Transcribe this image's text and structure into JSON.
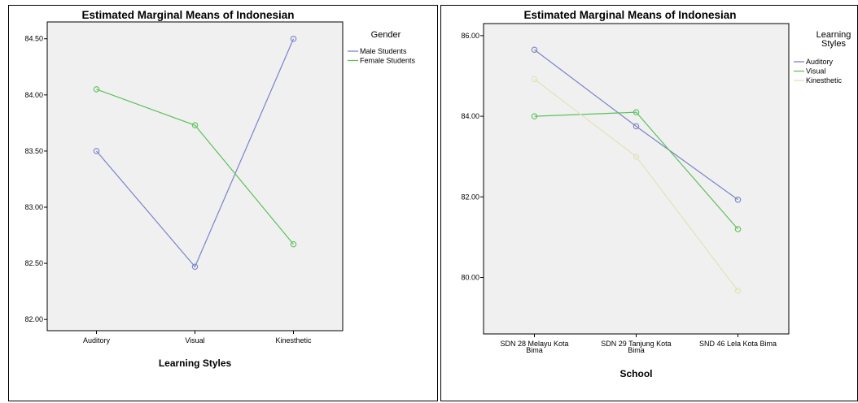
{
  "chart_data": [
    {
      "type": "line",
      "title": "Estimated Marginal Means of Indonesian",
      "xlabel": "Learning Styles",
      "ylabel": "",
      "categories": [
        "Auditory",
        "Visual",
        "Kinesthetic"
      ],
      "ylim": [
        81.9,
        84.65
      ],
      "yticks": [
        "82.00",
        "82.50",
        "83.00",
        "83.50",
        "84.00",
        "84.50"
      ],
      "grid": false,
      "legend_title": "Gender",
      "legend_position": "right",
      "series": [
        {
          "name": "Male Students",
          "color": "#7b84c9",
          "values": [
            83.5,
            82.47,
            84.5
          ]
        },
        {
          "name": "Female Students",
          "color": "#5cc15c",
          "values": [
            84.05,
            83.73,
            82.67
          ]
        }
      ]
    },
    {
      "type": "line",
      "title": "Estimated Marginal Means of Indonesian",
      "xlabel": "School",
      "ylabel": "",
      "categories": [
        [
          "SDN 28 Melayu Kota",
          "Bima"
        ],
        [
          "SDN 29 Tanjung Kota",
          "Bima"
        ],
        [
          "SND 46 Lela Kota Bima"
        ]
      ],
      "ylim": [
        78.6,
        86.3
      ],
      "yticks": [
        "80.00",
        "82.00",
        "84.00",
        "86.00"
      ],
      "grid": false,
      "legend_title": [
        "Learning",
        "Styles"
      ],
      "legend_position": "right",
      "series": [
        {
          "name": "Auditory",
          "color": "#7b84c9",
          "values": [
            85.65,
            83.75,
            81.93
          ]
        },
        {
          "name": "Visual",
          "color": "#5cc15c",
          "values": [
            84.0,
            84.1,
            81.2
          ]
        },
        {
          "name": "Kinesthetic",
          "color": "#e2e2b8",
          "values": [
            84.92,
            83.0,
            79.67
          ]
        }
      ]
    }
  ]
}
